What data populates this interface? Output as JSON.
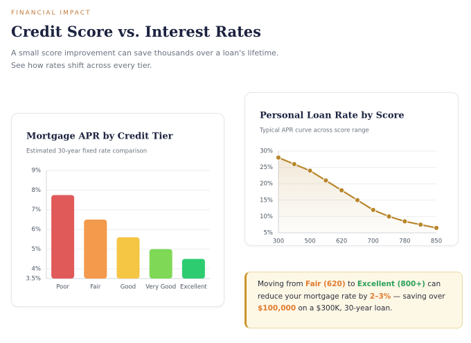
{
  "header": {
    "eyebrow": "FINANCIAL IMPACT",
    "title": "Credit Score vs. Interest Rates",
    "subtitle": "A small score improvement can save thousands over a loan's lifetime. See how rates shift across every tier."
  },
  "chart_data": [
    {
      "type": "bar",
      "title": "Mortgage APR by Credit Tier",
      "subtitle": "Estimated 30-year fixed rate comparison",
      "categories": [
        "Poor",
        "Fair",
        "Good",
        "Very Good",
        "Excellent"
      ],
      "values": [
        7.75,
        6.5,
        5.6,
        5.0,
        4.5
      ],
      "colors": [
        "#e05a5a",
        "#f39a4c",
        "#f5c544",
        "#7fd957",
        "#2ecc71"
      ],
      "ylim": [
        3.5,
        9
      ],
      "yticks": [
        {
          "value": 3.5,
          "label": "3.5%"
        },
        {
          "value": 4,
          "label": "4%"
        },
        {
          "value": 5,
          "label": "5%"
        },
        {
          "value": 6,
          "label": "6%"
        },
        {
          "value": 7,
          "label": "7%"
        },
        {
          "value": 8,
          "label": "8%"
        },
        {
          "value": 9,
          "label": "9%"
        }
      ],
      "grid": true
    },
    {
      "type": "line",
      "title": "Personal Loan Rate by Score",
      "subtitle": "Typical APR curve across score range",
      "categories": [
        "300",
        null,
        "500",
        null,
        "620",
        null,
        "700",
        null,
        "780",
        null,
        "850"
      ],
      "series": [
        {
          "color": "#b8862b",
          "values": [
            28,
            26,
            24,
            21,
            18,
            15,
            12,
            10,
            8.5,
            7.5,
            6.5
          ]
        }
      ],
      "ylim": [
        5,
        30
      ],
      "yticks": [
        {
          "value": 5,
          "label": "5%"
        },
        {
          "value": 10,
          "label": "10%"
        },
        {
          "value": 15,
          "label": "15%"
        },
        {
          "value": 20,
          "label": "20%"
        },
        {
          "value": 25,
          "label": "25%"
        },
        {
          "value": 30,
          "label": "30%"
        }
      ],
      "grid": true
    }
  ],
  "callout": {
    "parts": [
      "Moving from ",
      "Fair (620)",
      " to ",
      "Excellent (800+)",
      " can reduce your mortgage rate by ",
      "2–3%",
      " — saving over ",
      "$100,000",
      " on a $300K, 30-year loan."
    ]
  }
}
